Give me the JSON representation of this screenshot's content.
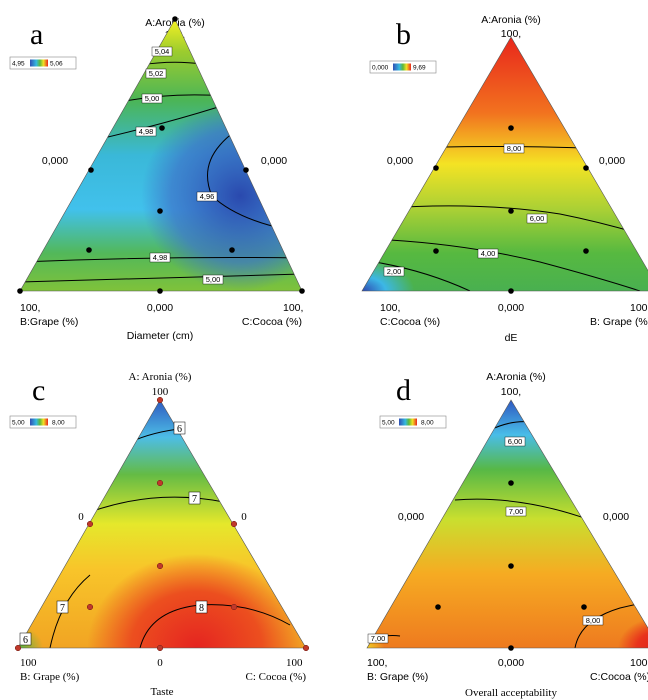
{
  "chart_data": [
    {
      "type": "contour",
      "panel": "a",
      "title": "Diameter (cm)",
      "vertices": {
        "top": "A:Aronia (%)",
        "bottom_left": "B:Grape (%)",
        "bottom_right": "C:Cocoa (%)"
      },
      "vertex_values": {
        "top": "100,",
        "bottom_left": "100,",
        "bottom_right": "100,"
      },
      "edge_values": {
        "left": "0,000",
        "right": "0,000",
        "bottom": "0,000"
      },
      "legend_range": [
        "4,95",
        "5,06"
      ],
      "contour_labels": [
        "5,04",
        "5,02",
        "5,00",
        "4,98",
        "4,96",
        "4,98",
        "5,00"
      ]
    },
    {
      "type": "contour",
      "panel": "b",
      "title": "dE",
      "vertices": {
        "top": "A:Aronia (%)",
        "bottom_left": "C:Cocoa (%)",
        "bottom_right": "B: Grape (%)"
      },
      "vertex_values": {
        "top": "100,",
        "bottom_left": "100,",
        "bottom_right": "100,"
      },
      "edge_values": {
        "left": "0,000",
        "right": "0,000",
        "bottom": "0,000"
      },
      "legend_range": [
        "0,000",
        "9,69"
      ],
      "contour_labels": [
        "8,00",
        "6,00",
        "4,00",
        "2,00"
      ]
    },
    {
      "type": "contour",
      "panel": "c",
      "title": "Taste",
      "vertices": {
        "top": "A: Aronia (%)",
        "bottom_left": "B: Grape (%)",
        "bottom_right": "C: Cocoa (%)"
      },
      "vertex_values": {
        "top": "100",
        "bottom_left": "100",
        "bottom_right": "100"
      },
      "edge_values": {
        "left": "0",
        "right": "0",
        "bottom": "0"
      },
      "legend_range": [
        "5,00",
        "8,00"
      ],
      "contour_labels": [
        "6",
        "7",
        "7",
        "8",
        "6"
      ]
    },
    {
      "type": "contour",
      "panel": "d",
      "title": "Overall acceptability",
      "vertices": {
        "top": "A:Aronia (%)",
        "bottom_left": "B: Grape (%)",
        "bottom_right": "C:Cocoa (%)"
      },
      "vertex_values": {
        "top": "100,",
        "bottom_left": "100,",
        "bottom_right": "100"
      },
      "edge_values": {
        "left": "0,000",
        "right": "0,000",
        "bottom": "0,000"
      },
      "legend_range": [
        "5,00",
        "8,00"
      ],
      "contour_labels": [
        "6,00",
        "7,00",
        "8,00",
        "7,00"
      ]
    }
  ],
  "panels": {
    "a": {
      "letter": "a"
    },
    "b": {
      "letter": "b"
    },
    "c": {
      "letter": "c"
    },
    "d": {
      "letter": "d"
    }
  },
  "colors": {
    "blue": "#2f4fb3",
    "cyan": "#3cc3ee",
    "green": "#5cb83a",
    "yellow": "#f7f223",
    "orange": "#f59a1e",
    "red": "#e8261c"
  }
}
